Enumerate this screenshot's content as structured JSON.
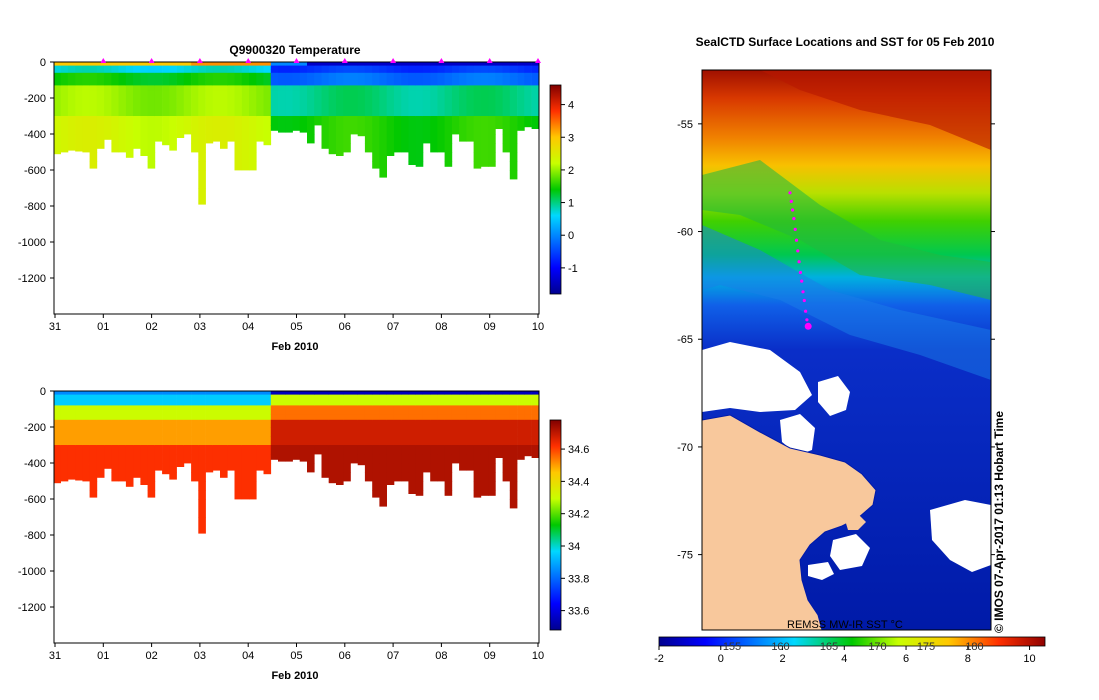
{
  "chart_data": [
    {
      "type": "heatmap",
      "title": "Q9900320  Temperature",
      "xlabel": "Feb 2010",
      "ylabel": "",
      "x_ticks": [
        "31",
        "01",
        "02",
        "03",
        "04",
        "05",
        "06",
        "07",
        "08",
        "09",
        "10"
      ],
      "y_ticks": [
        0,
        -200,
        -400,
        -600,
        -800,
        -1000,
        -1200
      ],
      "ylim": [
        -1400,
        0
      ],
      "colorbar": {
        "ticks": [
          -1,
          0,
          1,
          2,
          3,
          4
        ],
        "range": [
          -1.8,
          4.6
        ]
      },
      "profile_days": [
        0.05,
        0.2,
        0.35,
        0.5,
        0.65,
        0.8,
        0.95,
        1.1,
        1.25,
        1.4,
        1.55,
        1.7,
        1.85,
        2.0,
        2.15,
        2.3,
        2.45,
        2.6,
        2.75,
        2.9,
        3.05,
        3.2,
        3.35,
        3.5,
        3.65,
        3.8,
        3.95,
        4.1,
        4.25,
        4.4,
        4.55,
        4.7,
        4.85,
        5.0,
        5.15,
        5.3,
        5.45,
        5.6,
        5.75,
        5.9,
        6.05,
        6.2,
        6.35,
        6.5,
        6.65,
        6.8,
        6.95,
        7.1,
        7.25,
        7.4,
        7.55,
        7.7,
        7.85,
        8.0,
        8.15,
        8.3,
        8.45,
        8.6,
        8.75,
        8.9,
        9.05,
        9.2,
        9.35,
        9.5,
        9.65,
        9.8,
        9.95
      ],
      "max_depths": [
        510,
        500,
        490,
        495,
        500,
        590,
        480,
        430,
        500,
        500,
        530,
        480,
        520,
        590,
        440,
        460,
        490,
        420,
        400,
        500,
        790,
        450,
        440,
        480,
        440,
        600,
        600,
        600,
        440,
        460,
        380,
        390,
        390,
        380,
        390,
        450,
        350,
        480,
        510,
        520,
        500,
        400,
        410,
        500,
        590,
        640,
        520,
        500,
        500,
        570,
        580,
        450,
        500,
        500,
        580,
        400,
        440,
        440,
        590,
        580,
        580,
        370,
        500,
        650,
        380,
        360,
        370
      ],
      "profile_markers": [
        "01",
        "02",
        "03",
        "04",
        "05",
        "06",
        "07",
        "08",
        "09",
        "10"
      ]
    },
    {
      "type": "heatmap",
      "title": "",
      "xlabel": "Feb 2010",
      "ylabel": "",
      "x_ticks": [
        "31",
        "01",
        "02",
        "03",
        "04",
        "05",
        "06",
        "07",
        "08",
        "09",
        "10"
      ],
      "y_ticks": [
        0,
        -200,
        -400,
        -600,
        -800,
        -1000,
        -1200
      ],
      "ylim": [
        -1400,
        0
      ],
      "colorbar": {
        "ticks": [
          33.6,
          33.8,
          34,
          34.2,
          34.4,
          34.6
        ],
        "range": [
          33.48,
          34.78
        ]
      }
    },
    {
      "type": "heatmap",
      "title": "SealCTD Surface Locations and SST for 05 Feb 2010",
      "y_ticks": [
        -55,
        -60,
        -65,
        -70,
        -75
      ],
      "ylim": [
        -78.5,
        -52.5
      ],
      "colorbar": {
        "ticks": [
          "-2",
          "0",
          "2",
          "4",
          "6",
          "8",
          "10"
        ],
        "secondary_ticks": [
          "155",
          "160",
          "165",
          "170",
          "175",
          "180"
        ],
        "range": [
          -2,
          10.5
        ]
      },
      "annotation": "REMSS MW-IR SST °C",
      "credit": "© IMOS 07-Apr-2017 01:13 Hobart Time",
      "track_latitudes": [
        -58.2,
        -58.6,
        -59.0,
        -59.4,
        -59.9,
        -60.4,
        -60.9,
        -61.4,
        -61.9,
        -62.3,
        -62.8,
        -63.2,
        -63.7,
        -64.1,
        -64.4
      ],
      "colors": {
        "land": "#f8c89c",
        "ice": "#ffffff",
        "track": "#ff00ff"
      }
    }
  ]
}
